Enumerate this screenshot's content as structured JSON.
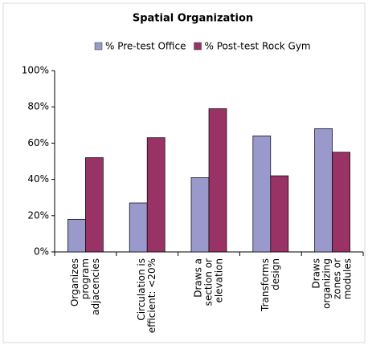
{
  "chart_data": {
    "type": "bar",
    "title": "Spatial Organization",
    "categories": [
      [
        "Organizes",
        "program",
        "adjacencies"
      ],
      [
        "Circulation is",
        "efficient: <20%"
      ],
      [
        "Draws a",
        "section or",
        "elevation"
      ],
      [
        "Transforms",
        "design"
      ],
      [
        "Draws",
        "organizing",
        "zones or",
        "modules"
      ]
    ],
    "series": [
      {
        "name": "% Pre-test Office",
        "color": "#9999cc",
        "values": [
          18,
          27,
          41,
          64,
          68
        ]
      },
      {
        "name": "% Post-test Rock Gym",
        "color": "#993366",
        "values": [
          52,
          63,
          79,
          42,
          55
        ]
      }
    ],
    "ylim": [
      0,
      100
    ],
    "yticks": [
      {
        "value": 0,
        "label": "0%"
      },
      {
        "value": 20,
        "label": "20%"
      },
      {
        "value": 40,
        "label": "40%"
      },
      {
        "value": 60,
        "label": "60%"
      },
      {
        "value": 80,
        "label": "80%"
      },
      {
        "value": 100,
        "label": "100%"
      }
    ],
    "grid": false,
    "legend": "top"
  }
}
